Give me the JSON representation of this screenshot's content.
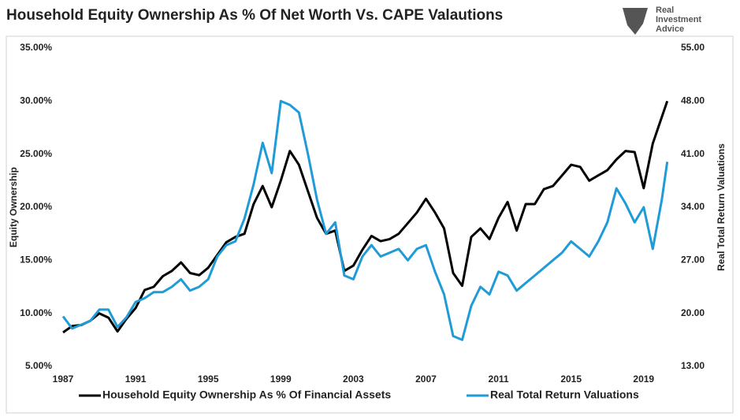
{
  "chart_data": {
    "type": "line",
    "title": "Household Equity Ownership As % Of Net Worth Vs. CAPE Valautions",
    "logo": [
      "Real",
      "Investment",
      "Advice"
    ],
    "ylabel": "Equity Ownership",
    "y2label": "Real Total Return Valuations",
    "xlim": [
      1987,
      2020.4
    ],
    "xticks": [
      1987,
      1991,
      1995,
      1999,
      2003,
      2007,
      2011,
      2015,
      2019
    ],
    "ylim": [
      5,
      35
    ],
    "yticks": [
      {
        "value": 5,
        "label": "5.00%"
      },
      {
        "value": 10,
        "label": "10.00%"
      },
      {
        "value": 15,
        "label": "15.00%"
      },
      {
        "value": 20,
        "label": "20.00%"
      },
      {
        "value": 25,
        "label": "25.00%"
      },
      {
        "value": 30,
        "label": "30.00%"
      },
      {
        "value": 35,
        "label": "35.00%"
      }
    ],
    "y2lim": [
      13,
      55
    ],
    "y2ticks": [
      {
        "value": 13,
        "label": "13.00"
      },
      {
        "value": 20,
        "label": "20.00"
      },
      {
        "value": 27,
        "label": "27.00"
      },
      {
        "value": 34,
        "label": "34.00"
      },
      {
        "value": 41,
        "label": "41.00"
      },
      {
        "value": 48,
        "label": "48.00"
      },
      {
        "value": 55,
        "label": "55.00"
      }
    ],
    "x": [
      1987,
      1987.5,
      1988,
      1988.5,
      1989,
      1989.5,
      1990,
      1990.5,
      1991,
      1991.5,
      1992,
      1992.5,
      1993,
      1993.5,
      1994,
      1994.5,
      1995,
      1995.5,
      1996,
      1996.5,
      1997,
      1997.5,
      1998,
      1998.5,
      1999,
      1999.5,
      2000,
      2000.5,
      2001,
      2001.5,
      2002,
      2002.5,
      2003,
      2003.5,
      2004,
      2004.5,
      2005,
      2005.5,
      2006,
      2006.5,
      2007,
      2007.5,
      2008,
      2008.5,
      2009,
      2009.5,
      2010,
      2010.5,
      2011,
      2011.5,
      2012,
      2012.5,
      2013,
      2013.5,
      2014,
      2014.5,
      2015,
      2015.5,
      2016,
      2016.5,
      2017,
      2017.5,
      2018,
      2018.5,
      2019,
      2019.5,
      2020,
      2020.3
    ],
    "series": [
      {
        "name": "Household Equity Ownership As % Of Financial Assets",
        "color": "#000000",
        "values": [
          8.2,
          8.8,
          8.9,
          9.3,
          10.0,
          9.6,
          8.3,
          9.5,
          10.5,
          12.2,
          12.5,
          13.5,
          14.0,
          14.8,
          13.8,
          13.6,
          14.3,
          15.5,
          16.7,
          17.2,
          17.5,
          20.3,
          22.0,
          20.0,
          22.5,
          25.3,
          24.0,
          21.5,
          19.0,
          17.5,
          17.8,
          14.0,
          14.5,
          16.0,
          17.3,
          16.8,
          17.0,
          17.5,
          18.5,
          19.5,
          20.8,
          19.5,
          18.0,
          13.8,
          12.6,
          17.2,
          18.0,
          17.0,
          19.0,
          20.5,
          17.8,
          20.3,
          20.3,
          21.7,
          22.0,
          23.0,
          24.0,
          23.8,
          22.5,
          23.0,
          23.5,
          24.5,
          25.3,
          25.2,
          21.8,
          26.0,
          28.5,
          30.0
        ]
      },
      {
        "name": "Real Total Return Valuations",
        "color": "#1f9bd7",
        "axis": "y2",
        "values": [
          19.6,
          18.0,
          18.5,
          19.0,
          20.5,
          20.5,
          18.2,
          19.5,
          21.5,
          22.0,
          22.8,
          22.8,
          23.5,
          24.5,
          23.0,
          23.5,
          24.5,
          27.5,
          29.0,
          29.5,
          32.5,
          37.0,
          42.5,
          38.5,
          48.0,
          47.5,
          46.5,
          41.0,
          35.0,
          30.5,
          32.0,
          25.0,
          24.5,
          27.5,
          29.0,
          27.5,
          28.0,
          28.5,
          27.0,
          28.5,
          29.0,
          25.5,
          22.5,
          17.0,
          16.5,
          21.0,
          23.5,
          22.5,
          25.5,
          25.0,
          23.0,
          24.0,
          25.0,
          26.0,
          27.0,
          28.0,
          29.5,
          28.5,
          27.5,
          29.5,
          32.0,
          36.5,
          34.5,
          32.0,
          34.0,
          28.5,
          35.0,
          40.0
        ]
      }
    ]
  }
}
